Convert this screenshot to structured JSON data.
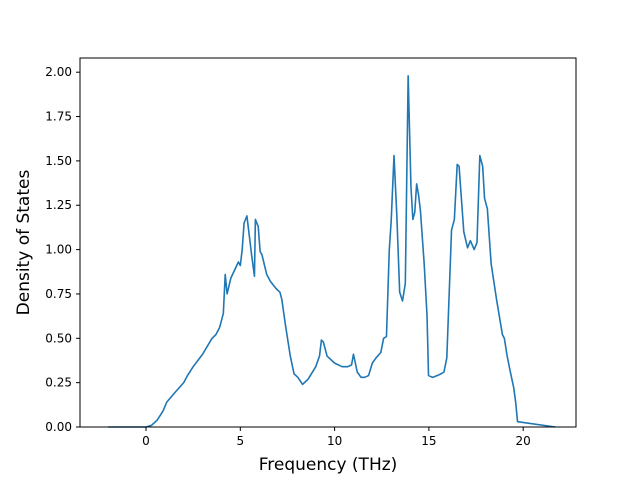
{
  "chart_data": {
    "type": "line",
    "title": "",
    "xlabel": "Frequency (THz)",
    "ylabel": "Density of States",
    "xlim": [
      -3.5,
      22.8
    ],
    "ylim": [
      0.0,
      2.08
    ],
    "xticks": [
      0,
      5,
      10,
      15,
      20
    ],
    "xtick_labels": [
      "0",
      "5",
      "10",
      "15",
      "20"
    ],
    "yticks": [
      0.0,
      0.25,
      0.5,
      0.75,
      1.0,
      1.25,
      1.5,
      1.75,
      2.0
    ],
    "ytick_labels": [
      "0.00",
      "0.25",
      "0.50",
      "0.75",
      "1.00",
      "1.25",
      "1.50",
      "1.75",
      "2.00"
    ],
    "grid": false,
    "line_color": "#1f77b4",
    "series": [
      {
        "x": [
          -2.0,
          0.0,
          0.3,
          0.6,
          0.9,
          1.1,
          1.5,
          2.0,
          2.2,
          2.5,
          3.0,
          3.5,
          3.7,
          3.9,
          4.1,
          4.2,
          4.3,
          4.5,
          4.9,
          5.0,
          5.1,
          5.2,
          5.35,
          5.6,
          5.75,
          5.8,
          5.95,
          6.05,
          6.15,
          6.4,
          6.6,
          6.9,
          7.1,
          7.2,
          7.4,
          7.65,
          7.85,
          8.05,
          8.3,
          8.6,
          9.0,
          9.2,
          9.3,
          9.4,
          9.6,
          10.0,
          10.4,
          10.7,
          10.9,
          11.0,
          11.2,
          11.4,
          11.6,
          11.8,
          12.0,
          12.2,
          12.45,
          12.6,
          12.75,
          12.9,
          13.0,
          13.15,
          13.3,
          13.45,
          13.6,
          13.75,
          13.9,
          14.05,
          14.15,
          14.25,
          14.35,
          14.45,
          14.55,
          14.75,
          14.9,
          14.98,
          15.2,
          15.45,
          15.65,
          15.8,
          15.95,
          16.2,
          16.35,
          16.5,
          16.6,
          16.85,
          17.05,
          17.2,
          17.4,
          17.55,
          17.7,
          17.85,
          17.95,
          18.1,
          18.3,
          18.6,
          18.9,
          19.0,
          19.15,
          19.3,
          19.5,
          19.6,
          19.7,
          21.7
        ],
        "y": [
          0.0,
          0.0,
          0.01,
          0.04,
          0.09,
          0.14,
          0.19,
          0.25,
          0.29,
          0.34,
          0.41,
          0.5,
          0.52,
          0.56,
          0.64,
          0.86,
          0.75,
          0.84,
          0.93,
          0.91,
          1.0,
          1.15,
          1.19,
          0.97,
          0.85,
          1.17,
          1.13,
          0.99,
          0.97,
          0.86,
          0.82,
          0.78,
          0.76,
          0.72,
          0.57,
          0.4,
          0.3,
          0.28,
          0.24,
          0.27,
          0.34,
          0.4,
          0.49,
          0.48,
          0.4,
          0.36,
          0.34,
          0.34,
          0.35,
          0.41,
          0.31,
          0.28,
          0.28,
          0.29,
          0.36,
          0.39,
          0.42,
          0.5,
          0.51,
          1.0,
          1.16,
          1.53,
          1.19,
          0.76,
          0.71,
          0.81,
          1.98,
          1.35,
          1.17,
          1.21,
          1.37,
          1.31,
          1.22,
          0.92,
          0.63,
          0.29,
          0.28,
          0.29,
          0.3,
          0.31,
          0.39,
          1.11,
          1.17,
          1.48,
          1.47,
          1.1,
          1.01,
          1.05,
          1.0,
          1.04,
          1.53,
          1.47,
          1.29,
          1.23,
          0.92,
          0.71,
          0.52,
          0.5,
          0.4,
          0.32,
          0.22,
          0.14,
          0.03,
          0.0
        ]
      }
    ]
  }
}
